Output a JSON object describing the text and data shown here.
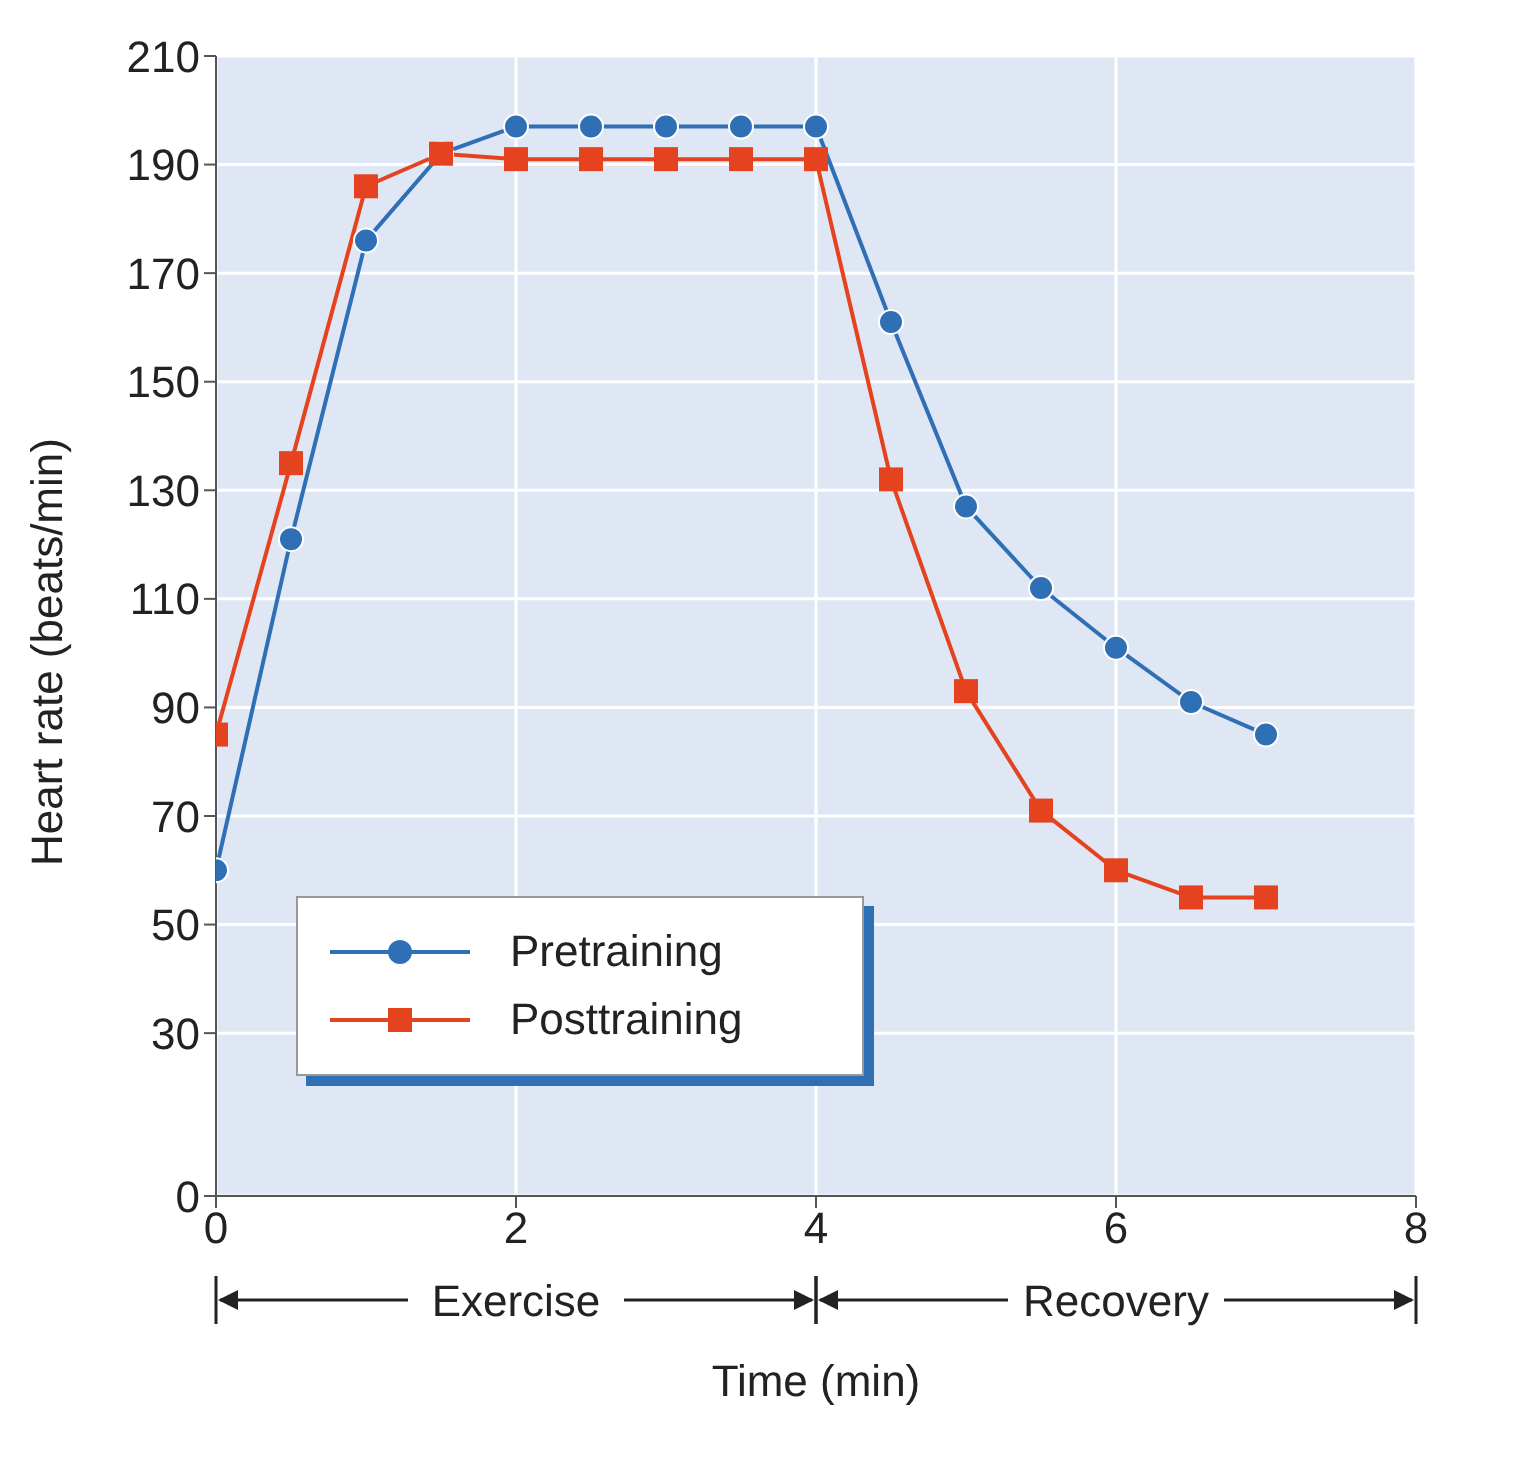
{
  "chart_data": {
    "type": "line",
    "xlabel": "Time (min)",
    "ylabel": "Heart rate (beats/min)",
    "x": [
      0,
      0.5,
      1,
      1.5,
      2,
      2.5,
      3,
      3.5,
      4,
      4.5,
      5,
      5.5,
      6,
      6.5,
      7
    ],
    "series": [
      {
        "name": "Pretraining",
        "color": "#2f6fb5",
        "marker": "circle",
        "values": [
          60,
          121,
          176,
          192,
          197,
          197,
          197,
          197,
          197,
          161,
          127,
          112,
          101,
          91,
          85
        ]
      },
      {
        "name": "Posttraining",
        "color": "#e5431f",
        "marker": "square",
        "values": [
          85,
          135,
          186,
          192,
          191,
          191,
          191,
          191,
          191,
          132,
          93,
          71,
          60,
          55,
          55
        ]
      }
    ],
    "xlim": [
      0,
      8
    ],
    "xticks": [
      0,
      2,
      4,
      6,
      8
    ],
    "ylim": [
      0,
      210
    ],
    "yticks": [
      0,
      30,
      50,
      70,
      90,
      110,
      130,
      150,
      170,
      190,
      210
    ],
    "annotations": [
      "Exercise",
      "Recovery"
    ],
    "grid": true,
    "legend": "bottom left"
  }
}
